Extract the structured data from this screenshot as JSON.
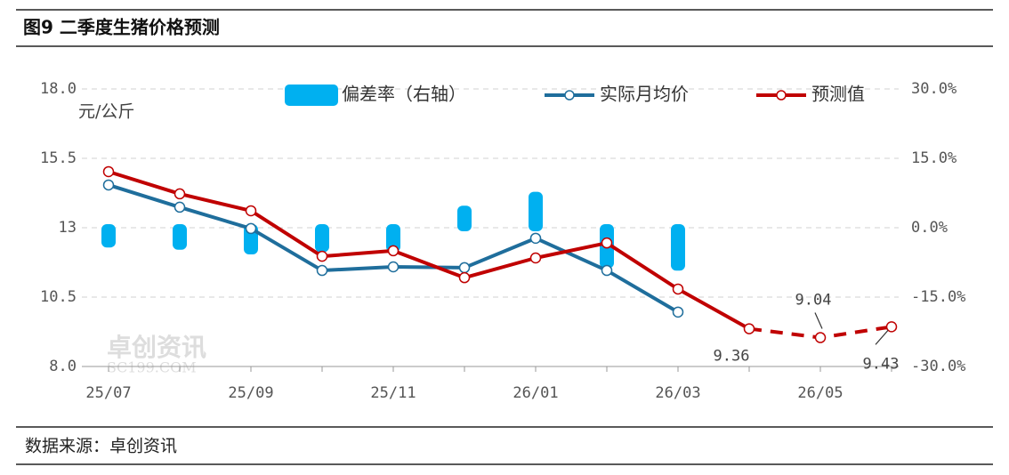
{
  "header": {
    "title": "图9 二季度生猪价格预测"
  },
  "footer": {
    "source": "数据来源：卓创资讯"
  },
  "chart_data": {
    "type": "combo",
    "y_unit": "元/公斤",
    "watermark": [
      "卓创资讯",
      "SC199.COM"
    ],
    "categories": [
      "25/07",
      null,
      "25/09",
      null,
      "25/11",
      null,
      "26/01",
      null,
      "26/03",
      null,
      "26/05",
      null
    ],
    "ylim": [
      8.0,
      18.0
    ],
    "yticks": [
      {
        "value": 8.0,
        "label": "8.0"
      },
      10.5,
      13.0,
      15.5,
      {
        "value": 18.0,
        "label": "18.0"
      }
    ],
    "y2lim": [
      -30,
      30
    ],
    "y2ticks": [
      {
        "value": -30,
        "label": "-30.0%"
      },
      {
        "value": -15,
        "label": "-15.0%"
      },
      {
        "value": 0,
        "label": "0.0%"
      },
      {
        "value": 15,
        "label": "15.0%"
      },
      {
        "value": 30,
        "label": "30.0%"
      }
    ],
    "grid": true,
    "series": [
      {
        "name": "偏差率（右轴）",
        "kind": "bar",
        "axis": "y2",
        "color": "#00b0f0",
        "values": [
          -3.5,
          -4.0,
          -5.0,
          -4.5,
          -4.5,
          4.0,
          7.0,
          -8.0,
          -8.5,
          null,
          null,
          null
        ]
      },
      {
        "name": "实际月均价",
        "kind": "line",
        "color": "#1f6e9c",
        "values": [
          14.54,
          13.74,
          12.97,
          11.46,
          11.59,
          11.56,
          12.62,
          11.46,
          9.96,
          null,
          null,
          null
        ]
      },
      {
        "name": "预测值",
        "kind": "line",
        "color": "#c00000",
        "dash_start_index": 9,
        "values": [
          15.02,
          14.22,
          13.61,
          11.97,
          12.17,
          11.2,
          11.91,
          12.45,
          10.79,
          9.36,
          9.04,
          9.43
        ],
        "value_labels": [
          null,
          null,
          null,
          null,
          null,
          null,
          null,
          null,
          null,
          "9.36",
          "9.04",
          "9.43"
        ]
      }
    ]
  }
}
